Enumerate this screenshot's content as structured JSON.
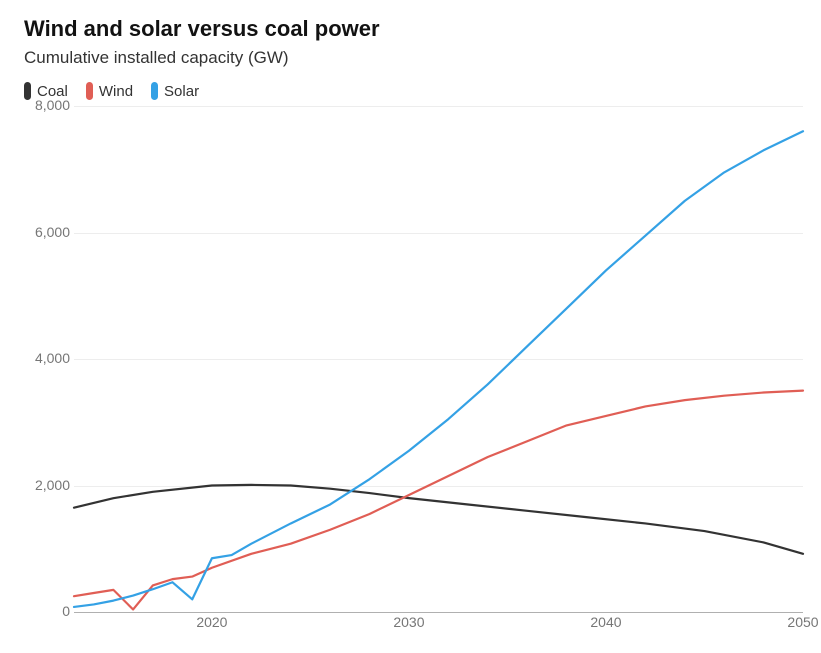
{
  "title": "Wind and solar versus coal power",
  "subtitle": "Cumulative installed capacity (GW)",
  "chart": {
    "type": "line",
    "background_color": "#ffffff",
    "grid_color": "#ededed",
    "baseline_color": "#b0b0b0",
    "axis_label_color": "#767676",
    "title_fontsize": 22,
    "subtitle_fontsize": 17,
    "legend_fontsize": 15,
    "axis_fontsize": 14,
    "line_width": 2.2,
    "x": {
      "min": 2013,
      "max": 2050,
      "ticks": [
        2020,
        2030,
        2040,
        2050
      ]
    },
    "y": {
      "min": 0,
      "max": 8000,
      "ticks": [
        0,
        2000,
        4000,
        6000,
        8000
      ],
      "tick_labels": [
        "0",
        "2,000",
        "4,000",
        "6,000",
        "8,000"
      ]
    },
    "legend": [
      {
        "key": "coal",
        "label": "Coal",
        "color": "#333333"
      },
      {
        "key": "wind",
        "label": "Wind",
        "color": "#e05e55"
      },
      {
        "key": "solar",
        "label": "Solar",
        "color": "#34a1e5"
      }
    ],
    "series": {
      "coal": {
        "color": "#333333",
        "points": [
          [
            2013,
            1650
          ],
          [
            2015,
            1800
          ],
          [
            2017,
            1900
          ],
          [
            2020,
            2000
          ],
          [
            2022,
            2010
          ],
          [
            2024,
            2000
          ],
          [
            2026,
            1950
          ],
          [
            2028,
            1880
          ],
          [
            2030,
            1800
          ],
          [
            2033,
            1700
          ],
          [
            2036,
            1600
          ],
          [
            2039,
            1500
          ],
          [
            2042,
            1400
          ],
          [
            2045,
            1280
          ],
          [
            2048,
            1100
          ],
          [
            2050,
            920
          ]
        ]
      },
      "wind": {
        "color": "#e05e55",
        "points": [
          [
            2013,
            250
          ],
          [
            2014,
            300
          ],
          [
            2015,
            350
          ],
          [
            2016,
            40
          ],
          [
            2017,
            420
          ],
          [
            2018,
            520
          ],
          [
            2019,
            560
          ],
          [
            2020,
            700
          ],
          [
            2022,
            920
          ],
          [
            2024,
            1080
          ],
          [
            2026,
            1300
          ],
          [
            2028,
            1550
          ],
          [
            2030,
            1850
          ],
          [
            2032,
            2150
          ],
          [
            2034,
            2450
          ],
          [
            2036,
            2700
          ],
          [
            2038,
            2950
          ],
          [
            2040,
            3100
          ],
          [
            2042,
            3250
          ],
          [
            2044,
            3350
          ],
          [
            2046,
            3420
          ],
          [
            2048,
            3470
          ],
          [
            2050,
            3500
          ]
        ]
      },
      "solar": {
        "color": "#34a1e5",
        "points": [
          [
            2013,
            80
          ],
          [
            2014,
            120
          ],
          [
            2015,
            180
          ],
          [
            2016,
            260
          ],
          [
            2017,
            360
          ],
          [
            2018,
            470
          ],
          [
            2019,
            200
          ],
          [
            2020,
            850
          ],
          [
            2021,
            900
          ],
          [
            2022,
            1080
          ],
          [
            2024,
            1400
          ],
          [
            2026,
            1700
          ],
          [
            2028,
            2100
          ],
          [
            2030,
            2550
          ],
          [
            2032,
            3050
          ],
          [
            2034,
            3600
          ],
          [
            2036,
            4200
          ],
          [
            2038,
            4800
          ],
          [
            2040,
            5400
          ],
          [
            2042,
            5950
          ],
          [
            2044,
            6500
          ],
          [
            2046,
            6950
          ],
          [
            2048,
            7300
          ],
          [
            2050,
            7600
          ]
        ]
      }
    }
  }
}
